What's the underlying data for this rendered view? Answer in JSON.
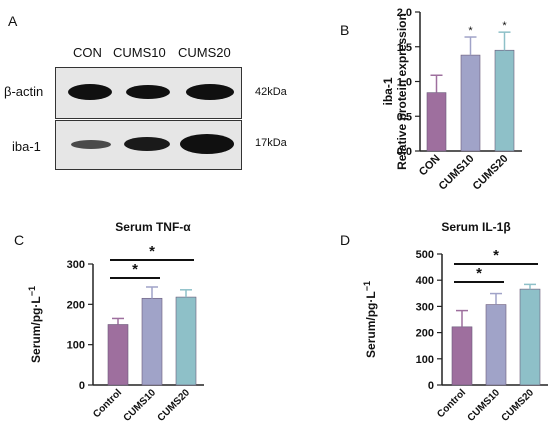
{
  "panels": {
    "A": "A",
    "B": "B",
    "C": "C",
    "D": "D"
  },
  "blot": {
    "lanes": [
      "CON",
      "CUMS10",
      "CUMS20"
    ],
    "rows": [
      {
        "label": "β-actin",
        "size": "42kDa",
        "intensity": [
          1.0,
          0.9,
          1.0
        ]
      },
      {
        "label": "iba-1",
        "size": "17kDa",
        "intensity": [
          0.35,
          0.75,
          1.0
        ]
      }
    ]
  },
  "chart_data": [
    {
      "id": "B",
      "type": "bar",
      "title": "",
      "ylabel_lines": [
        "iba-1",
        "Relative protein expression"
      ],
      "xlabel": "",
      "categories": [
        "CON",
        "CUMS10",
        "CUMS20"
      ],
      "values": [
        0.84,
        1.38,
        1.45
      ],
      "errors": [
        0.25,
        0.26,
        0.26
      ],
      "significance": [
        "",
        "*",
        "*"
      ],
      "ylim": [
        0,
        2.0
      ],
      "yticks": [
        0.0,
        0.5,
        1.0,
        1.5,
        2.0
      ],
      "ytick_labels": [
        "0.0",
        "0.5",
        "1.0",
        "1.5",
        "2.0"
      ],
      "colors": [
        "#9e6f9e",
        "#a0a3c8",
        "#8ec0c8"
      ]
    },
    {
      "id": "C",
      "type": "bar",
      "title": "Serum TNF-α",
      "ylabel": "Serum/pg·L",
      "ylabel_sup": "−1",
      "xlabel": "",
      "categories": [
        "Control",
        "CUMS10",
        "CUMS20"
      ],
      "values": [
        150,
        215,
        218
      ],
      "errors": [
        15,
        28,
        18
      ],
      "ylim": [
        0,
        300
      ],
      "yticks": [
        0,
        100,
        200,
        300
      ],
      "ytick_labels": [
        "0",
        "100",
        "200",
        "300"
      ],
      "brackets": [
        {
          "from": 0,
          "to": 1,
          "label": "*"
        },
        {
          "from": 0,
          "to": 2,
          "label": "*"
        }
      ],
      "colors": [
        "#9e6f9e",
        "#a0a3c8",
        "#8ec0c8"
      ]
    },
    {
      "id": "D",
      "type": "bar",
      "title": "Serum IL-1β",
      "ylabel": "Serum/pg·L",
      "ylabel_sup": "−1",
      "xlabel": "",
      "categories": [
        "Control",
        "CUMS10",
        "CUMS20"
      ],
      "values": [
        222,
        307,
        366
      ],
      "errors": [
        62,
        42,
        18
      ],
      "ylim": [
        0,
        500
      ],
      "yticks": [
        0,
        100,
        200,
        300,
        400,
        500
      ],
      "ytick_labels": [
        "0",
        "100",
        "200",
        "300",
        "400",
        "500"
      ],
      "brackets": [
        {
          "from": 0,
          "to": 1,
          "label": "*"
        },
        {
          "from": 0,
          "to": 2,
          "label": "*"
        }
      ],
      "colors": [
        "#9e6f9e",
        "#a0a3c8",
        "#8ec0c8"
      ]
    }
  ]
}
